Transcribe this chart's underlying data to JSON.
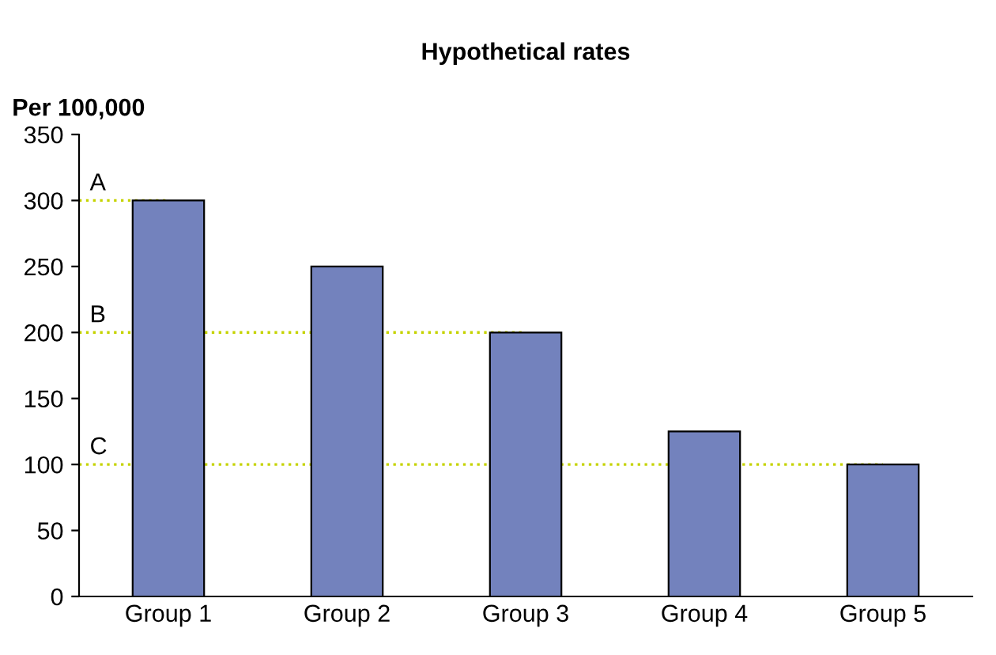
{
  "chart_data": {
    "type": "bar",
    "title": "Hypothetical rates",
    "ylabel": "Per 100,000",
    "categories": [
      "Group 1",
      "Group 2",
      "Group 3",
      "Group 4",
      "Group 5"
    ],
    "values": [
      300,
      250,
      200,
      125,
      100
    ],
    "color": "#7382bd",
    "ylim": [
      0,
      350
    ],
    "yticks": [
      0,
      50,
      100,
      150,
      200,
      250,
      300,
      350
    ],
    "grid": false,
    "ref_lines": [
      {
        "axis": "y",
        "value": 300,
        "label": "A",
        "color": "#c5d300",
        "line_style": "dotted"
      },
      {
        "axis": "y",
        "value": 200,
        "label": "B",
        "color": "#c5d300",
        "line_style": "dotted"
      },
      {
        "axis": "y",
        "value": 100,
        "label": "C",
        "color": "#c5d300",
        "line_style": "dotted"
      }
    ]
  }
}
